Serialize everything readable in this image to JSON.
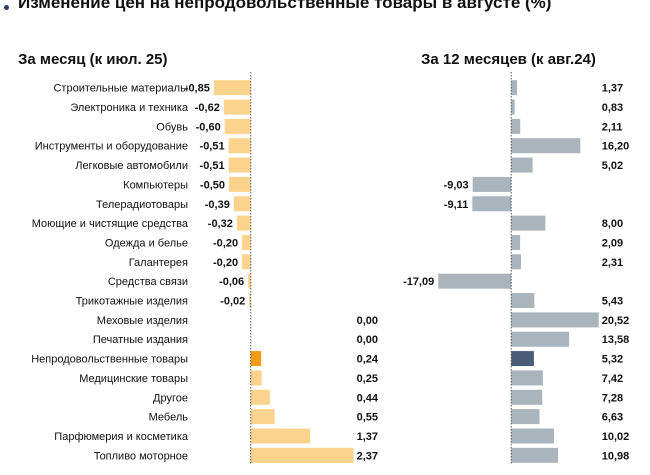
{
  "title": "Изменение цен на непродовольственные товары в августе (%)",
  "colors": {
    "left_bar": "#fcd38c",
    "left_highlight": "#f39c12",
    "right_bar": "#a9b4bd",
    "right_highlight": "#4a5d78",
    "axis": "#555555"
  },
  "chart_data": {
    "type": "bar",
    "orientation": "horizontal",
    "title": "Изменение цен на непродовольственные товары в августе (%)",
    "categories": [
      "Строительные материалы",
      "Электроника и техника",
      "Обувь",
      "Инструменты и оборудование",
      "Легковые автомобили",
      "Компьютеры",
      "Телерадиотовары",
      "Моющие и чистящие средства",
      "Одежда и белье",
      "Галантерея",
      "Средства связи",
      "Трикотажные изделия",
      "Меховые изделия",
      "Печатные издания",
      "Непродовольственные товары",
      "Медицинские товары",
      "Другое",
      "Мебель",
      "Парфюмерия и косметика",
      "Топливо моторное"
    ],
    "highlight_category": "Непродовольственные товары",
    "series": [
      {
        "name": "За месяц (к июл. 25)",
        "values": [
          -0.85,
          -0.62,
          -0.6,
          -0.51,
          -0.51,
          -0.5,
          -0.39,
          -0.32,
          -0.2,
          -0.2,
          -0.06,
          -0.02,
          0.0,
          0.0,
          0.24,
          0.25,
          0.44,
          0.55,
          1.37,
          2.37
        ],
        "labels": [
          "-0,85",
          "-0,62",
          "-0,60",
          "-0,51",
          "-0,51",
          "-0,50",
          "-0,39",
          "-0,32",
          "-0,20",
          "-0,20",
          "-0,06",
          "-0,02",
          "0,00",
          "0,00",
          "0,24",
          "0,25",
          "0,44",
          "0,55",
          "1,37",
          "2,37"
        ],
        "xlim": [
          -1.4,
          3.9
        ]
      },
      {
        "name": "За 12 месяцев (к авг.24)",
        "values": [
          1.37,
          0.83,
          2.11,
          16.2,
          5.02,
          -9.03,
          -9.11,
          8.0,
          2.09,
          2.31,
          -17.09,
          5.43,
          20.52,
          13.58,
          5.32,
          7.42,
          7.28,
          6.63,
          10.02,
          10.98
        ],
        "labels": [
          "1,37",
          "0,83",
          "2,11",
          "16,20",
          "5,02",
          "-9,03",
          "-9,11",
          "8,00",
          "2,09",
          "2,31",
          "-17,09",
          "5,43",
          "20,52",
          "13,58",
          "5,32",
          "7,42",
          "7,28",
          "6,63",
          "10,02",
          "10,98"
        ],
        "xlim": [
          -20.2,
          25.5
        ]
      }
    ]
  }
}
